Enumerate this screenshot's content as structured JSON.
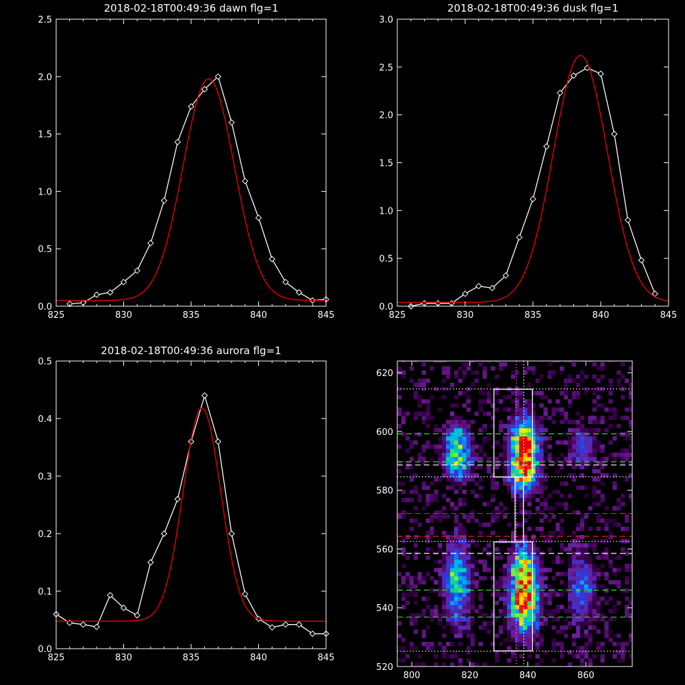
{
  "chart_data": [
    {
      "id": "dawn",
      "type": "line",
      "title": "2018-02-18T00:49:36 dawn flg=1",
      "xlim": [
        825,
        845
      ],
      "ylim": [
        0,
        2.5
      ],
      "x_ticks": [
        825,
        830,
        835,
        840,
        845
      ],
      "y_ticks": [
        0.0,
        0.5,
        1.0,
        1.5,
        2.0,
        2.5
      ],
      "y_tick_labels": [
        "0.0",
        "0.5",
        "1.0",
        "1.5",
        "2.0",
        "2.5"
      ],
      "series": [
        {
          "color": "#ffffff",
          "marker": "diamond",
          "x": [
            826,
            827,
            828,
            829,
            830,
            831,
            832,
            833,
            834,
            835,
            836,
            837,
            838,
            839,
            840,
            841,
            842,
            843,
            844,
            845
          ],
          "y": [
            0.02,
            0.03,
            0.1,
            0.12,
            0.21,
            0.31,
            0.55,
            0.92,
            1.43,
            1.74,
            1.89,
            2.0,
            1.6,
            1.09,
            0.77,
            0.41,
            0.21,
            0.12,
            0.05,
            0.06
          ]
        },
        {
          "color": "#dd0000",
          "fit": "gaussian",
          "peak_x": 836.3,
          "amplitude": 1.93,
          "sigma": 1.9,
          "baseline": 0.05
        }
      ]
    },
    {
      "id": "dusk",
      "type": "line",
      "title": "2018-02-18T00:49:36 dusk flg=1",
      "xlim": [
        825,
        845
      ],
      "ylim": [
        0,
        3.0
      ],
      "x_ticks": [
        825,
        830,
        835,
        840,
        845
      ],
      "y_ticks": [
        0.0,
        0.5,
        1.0,
        1.5,
        2.0,
        2.5,
        3.0
      ],
      "y_tick_labels": [
        "0.0",
        "0.5",
        "1.0",
        "1.5",
        "2.0",
        "2.5",
        "3.0"
      ],
      "series": [
        {
          "color": "#ffffff",
          "marker": "diamond",
          "x": [
            826,
            827,
            828,
            829,
            830,
            831,
            832,
            833,
            834,
            835,
            836,
            837,
            838,
            839,
            840,
            841,
            842,
            843,
            844
          ],
          "y": [
            0.0,
            0.03,
            0.03,
            0.03,
            0.13,
            0.21,
            0.19,
            0.32,
            0.72,
            1.12,
            1.67,
            2.23,
            2.41,
            2.49,
            2.43,
            1.8,
            0.9,
            0.48,
            0.13
          ]
        },
        {
          "color": "#dd0000",
          "fit": "gaussian",
          "peak_x": 838.5,
          "amplitude": 2.58,
          "sigma": 2.0,
          "baseline": 0.04
        }
      ]
    },
    {
      "id": "aurora",
      "type": "line",
      "title": "2018-02-18T00:49:36 aurora flg=1",
      "xlim": [
        825,
        845
      ],
      "ylim": [
        0,
        0.5
      ],
      "x_ticks": [
        825,
        830,
        835,
        840,
        845
      ],
      "y_ticks": [
        0.0,
        0.1,
        0.2,
        0.3,
        0.4,
        0.5
      ],
      "y_tick_labels": [
        "0.0",
        "0.1",
        "0.2",
        "0.3",
        "0.4",
        "0.5"
      ],
      "series": [
        {
          "color": "#ffffff",
          "marker": "diamond",
          "x": [
            825,
            826,
            827,
            828,
            829,
            830,
            831,
            832,
            833,
            834,
            835,
            836,
            837,
            838,
            839,
            840,
            841,
            842,
            843,
            844,
            845
          ],
          "y": [
            0.06,
            0.045,
            0.042,
            0.038,
            0.093,
            0.071,
            0.058,
            0.15,
            0.2,
            0.26,
            0.36,
            0.44,
            0.36,
            0.2,
            0.095,
            0.052,
            0.037,
            0.042,
            0.042,
            0.026,
            0.026
          ]
        },
        {
          "color": "#dd0000",
          "fit": "gaussian",
          "peak_x": 835.8,
          "amplitude": 0.37,
          "sigma": 1.4,
          "baseline": 0.048
        }
      ]
    },
    {
      "id": "image",
      "type": "heatmap",
      "title": "",
      "xlim": [
        795,
        876
      ],
      "ylim": [
        520,
        624
      ],
      "x_ticks": [
        800,
        820,
        840,
        860
      ],
      "y_ticks": [
        520,
        540,
        560,
        580,
        600,
        620
      ],
      "colormap": "rainbow",
      "blobs": [
        {
          "x": 838,
          "y": 594,
          "sx": 3.2,
          "sy": 6.5,
          "amp": 1.0
        },
        {
          "x": 838,
          "y": 584,
          "sx": 3.0,
          "sy": 4.0,
          "amp": 0.55
        },
        {
          "x": 815,
          "y": 594,
          "sx": 3.0,
          "sy": 5.5,
          "amp": 0.6
        },
        {
          "x": 815,
          "y": 587,
          "sx": 2.5,
          "sy": 3.0,
          "amp": 0.3
        },
        {
          "x": 858,
          "y": 594,
          "sx": 3.0,
          "sy": 4.5,
          "amp": 0.3
        },
        {
          "x": 838,
          "y": 542,
          "sx": 3.3,
          "sy": 7.5,
          "amp": 0.95
        },
        {
          "x": 838,
          "y": 554,
          "sx": 3.0,
          "sy": 5.0,
          "amp": 0.5
        },
        {
          "x": 815,
          "y": 548,
          "sx": 3.0,
          "sy": 9.0,
          "amp": 0.55
        },
        {
          "x": 858,
          "y": 546,
          "sx": 3.0,
          "sy": 8.0,
          "amp": 0.35
        }
      ],
      "boxes": [
        {
          "x": [
            828.3,
            841.6
          ],
          "y": [
            525.3,
            562.4
          ],
          "color": "#ffffff",
          "style": "solid"
        },
        {
          "x": [
            828.3,
            841.6
          ],
          "y": [
            584.5,
            614.4
          ],
          "color": "#ffffff",
          "style": "solid"
        },
        {
          "x": [
            835.6,
            838.5
          ],
          "y": [
            562.4,
            584.5
          ],
          "color": "#ffffff",
          "style": "solid"
        }
      ],
      "hlines": [
        {
          "y": 614.5,
          "color": "#ffffff",
          "style": "dotted"
        },
        {
          "y": 599.2,
          "color": "#33dd33",
          "style": "dashed"
        },
        {
          "y": 589.7,
          "color": "#33dd33",
          "style": "dashed"
        },
        {
          "y": 588.6,
          "color": "#ffffff",
          "style": "dashed"
        },
        {
          "y": 584.6,
          "color": "#ffffff",
          "style": "dotted"
        },
        {
          "y": 572.1,
          "color": "#ee2222",
          "style": "dashed"
        },
        {
          "y": 564.3,
          "color": "#ee2222",
          "style": "dashed"
        },
        {
          "y": 562.6,
          "color": "#ffffff",
          "style": "dotted"
        },
        {
          "y": 558.5,
          "color": "#ffffff",
          "style": "dashed"
        },
        {
          "y": 546.0,
          "color": "#33dd33",
          "style": "dashed"
        },
        {
          "y": 536.8,
          "color": "#33dd33",
          "style": "dashed"
        },
        {
          "y": 525.2,
          "color": "#ffffff",
          "style": "dotted"
        }
      ],
      "vlines": [
        {
          "x": 836.0,
          "color": "#ff66ff",
          "style": "dotted"
        },
        {
          "x": 838.6,
          "color": "#ffffff",
          "style": "dotted"
        }
      ]
    }
  ]
}
